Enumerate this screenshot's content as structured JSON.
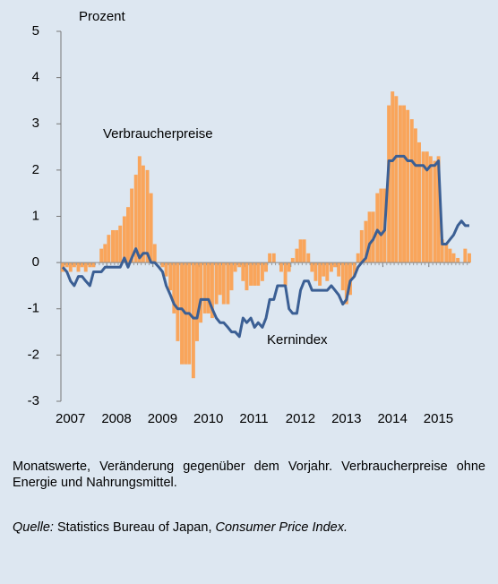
{
  "chart_data": {
    "type": "bar",
    "ylabel": "Prozent",
    "annotations": [
      "Verbraucherpreise",
      "Kernindex"
    ],
    "xlim": [
      2007,
      2015.9
    ],
    "xticks": [
      2007,
      2008,
      2009,
      2010,
      2011,
      2012,
      2013,
      2014,
      2015
    ],
    "ylim": [
      -3,
      5
    ],
    "yticks": [
      -3,
      -2,
      -1,
      0,
      1,
      2,
      3,
      4,
      5
    ],
    "x": [
      2007.04,
      2007.13,
      2007.21,
      2007.29,
      2007.38,
      2007.46,
      2007.54,
      2007.63,
      2007.71,
      2007.79,
      2007.88,
      2007.96,
      2008.04,
      2008.13,
      2008.21,
      2008.29,
      2008.38,
      2008.46,
      2008.54,
      2008.63,
      2008.71,
      2008.79,
      2008.88,
      2008.96,
      2009.04,
      2009.13,
      2009.21,
      2009.29,
      2009.38,
      2009.46,
      2009.54,
      2009.63,
      2009.71,
      2009.79,
      2009.88,
      2009.96,
      2010.04,
      2010.13,
      2010.21,
      2010.29,
      2010.38,
      2010.46,
      2010.54,
      2010.63,
      2010.71,
      2010.79,
      2010.88,
      2010.96,
      2011.04,
      2011.13,
      2011.21,
      2011.29,
      2011.38,
      2011.46,
      2011.54,
      2011.63,
      2011.71,
      2011.79,
      2011.88,
      2011.96,
      2012.04,
      2012.13,
      2012.21,
      2012.29,
      2012.38,
      2012.46,
      2012.54,
      2012.63,
      2012.71,
      2012.79,
      2012.88,
      2012.96,
      2013.04,
      2013.13,
      2013.21,
      2013.29,
      2013.38,
      2013.46,
      2013.54,
      2013.63,
      2013.71,
      2013.79,
      2013.88,
      2013.96,
      2014.04,
      2014.13,
      2014.21,
      2014.29,
      2014.38,
      2014.46,
      2014.54,
      2014.63,
      2014.71,
      2014.79,
      2014.88,
      2014.96,
      2015.04,
      2015.13,
      2015.21,
      2015.29,
      2015.38,
      2015.46,
      2015.54,
      2015.63,
      2015.71,
      2015.79,
      2015.88
    ],
    "series": [
      {
        "name": "Verbraucherpreise",
        "type": "bar",
        "color": "#f9a55b",
        "values": [
          -0.2,
          -0.1,
          -0.2,
          -0.1,
          -0.2,
          -0.1,
          -0.2,
          -0.1,
          -0.1,
          0,
          0.3,
          0.4,
          0.6,
          0.7,
          0.7,
          0.8,
          1.0,
          1.2,
          1.6,
          1.9,
          2.3,
          2.1,
          2.0,
          1.5,
          0.4,
          0,
          -0.1,
          -0.3,
          -0.6,
          -1.1,
          -1.7,
          -2.2,
          -2.2,
          -2.2,
          -2.5,
          -1.7,
          -1.3,
          -1.1,
          -1.1,
          -1.2,
          -0.9,
          -0.7,
          -0.9,
          -0.9,
          -0.6,
          -0.2,
          -0.1,
          -0.4,
          -0.6,
          -0.5,
          -0.5,
          -0.5,
          -0.4,
          -0.2,
          0.2,
          0.2,
          0,
          -0.2,
          -0.5,
          -0.2,
          0.1,
          0.3,
          0.5,
          0.5,
          0.2,
          -0.2,
          -0.4,
          -0.5,
          -0.3,
          -0.4,
          -0.2,
          -0.1,
          -0.3,
          -0.6,
          -0.9,
          -0.7,
          -0.3,
          0.2,
          0.7,
          0.9,
          1.1,
          1.1,
          1.5,
          1.6,
          1.6,
          3.4,
          3.7,
          3.6,
          3.4,
          3.4,
          3.3,
          3.1,
          2.9,
          2.6,
          2.4,
          2.4,
          2.3,
          2.2,
          2.3,
          0.5,
          0.4,
          0.3,
          0.2,
          0.1,
          0,
          0.3,
          0.2
        ]
      },
      {
        "name": "Kernindex",
        "type": "line",
        "color": "#3b5f94",
        "values": [
          -0.1,
          -0.2,
          -0.4,
          -0.5,
          -0.3,
          -0.3,
          -0.4,
          -0.5,
          -0.2,
          -0.2,
          -0.2,
          -0.1,
          -0.1,
          -0.1,
          -0.1,
          -0.1,
          0.1,
          -0.1,
          0.1,
          0.3,
          0.1,
          0.2,
          0.2,
          0,
          0,
          -0.1,
          -0.2,
          -0.5,
          -0.7,
          -0.9,
          -1,
          -1,
          -1.1,
          -1.1,
          -1.2,
          -1.2,
          -0.8,
          -0.8,
          -0.8,
          -1.0,
          -1.2,
          -1.3,
          -1.3,
          -1.4,
          -1.5,
          -1.5,
          -1.6,
          -1.2,
          -1.3,
          -1.2,
          -1.4,
          -1.3,
          -1.4,
          -1.2,
          -0.8,
          -0.8,
          -0.5,
          -0.5,
          -0.5,
          -1.0,
          -1.1,
          -1.1,
          -0.6,
          -0.4,
          -0.4,
          -0.6,
          -0.6,
          -0.6,
          -0.6,
          -0.6,
          -0.5,
          -0.6,
          -0.7,
          -0.9,
          -0.8,
          -0.4,
          -0.3,
          -0.1,
          0,
          0.1,
          0.4,
          0.5,
          0.7,
          0.6,
          0.7,
          2.2,
          2.2,
          2.3,
          2.3,
          2.3,
          2.2,
          2.2,
          2.1,
          2.1,
          2.1,
          2.0,
          2.1,
          2.1,
          2.2,
          0.4,
          0.4,
          0.5,
          0.6,
          0.8,
          0.9,
          0.8,
          0.8
        ]
      }
    ],
    "note": "Monatswerte, Veränderung gegenüber dem Vorjahr. Verbraucherpreise ohne Energie und Nahrungsmittel.",
    "source": [
      "Quelle:",
      "Statistics Bureau of Japan,",
      "Consumer Price Index."
    ]
  }
}
